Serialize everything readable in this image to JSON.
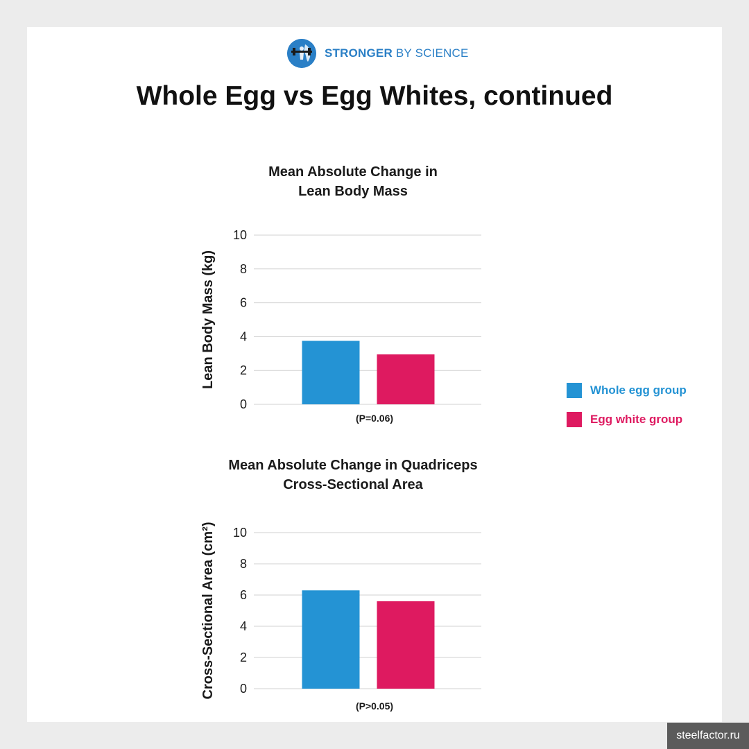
{
  "brand": {
    "name_strong": "STRONGER",
    "name_rest": " BY SCIENCE",
    "logo_icon": "lifter-globe-icon"
  },
  "page_title": "Whole Egg vs Egg Whites, continued",
  "colors": {
    "whole_egg": "#2493d4",
    "egg_white": "#de1a60",
    "grid": "#d0d0d0",
    "brand": "#2a7fc6"
  },
  "legend": [
    {
      "label": "Whole egg group",
      "color": "#2493d4"
    },
    {
      "label": "Egg white group",
      "color": "#de1a60"
    }
  ],
  "chart_data": [
    {
      "type": "bar",
      "title_lines": [
        "Mean Absolute Change in",
        "Lean Body Mass"
      ],
      "ylabel": "Lean Body Mass (kg)",
      "xlabel": "(P=0.06)",
      "ylim": [
        0,
        10
      ],
      "yticks": [
        0,
        2,
        4,
        6,
        8,
        10
      ],
      "grid": true,
      "series": [
        {
          "name": "Whole egg group",
          "values": [
            3.75
          ],
          "color": "#2493d4"
        },
        {
          "name": "Egg white group",
          "values": [
            2.95
          ],
          "color": "#de1a60"
        }
      ]
    },
    {
      "type": "bar",
      "title_lines": [
        "Mean Absolute Change in Quadriceps",
        "Cross-Sectional Area"
      ],
      "ylabel": "Cross-Sectional Area (cm²)",
      "xlabel": "(P>0.05)",
      "ylim": [
        0,
        10
      ],
      "yticks": [
        0,
        2,
        4,
        6,
        8,
        10
      ],
      "grid": true,
      "series": [
        {
          "name": "Whole egg group",
          "values": [
            6.3
          ],
          "color": "#2493d4"
        },
        {
          "name": "Egg white group",
          "values": [
            5.6
          ],
          "color": "#de1a60"
        }
      ]
    }
  ],
  "watermark": "steelfactor.ru"
}
